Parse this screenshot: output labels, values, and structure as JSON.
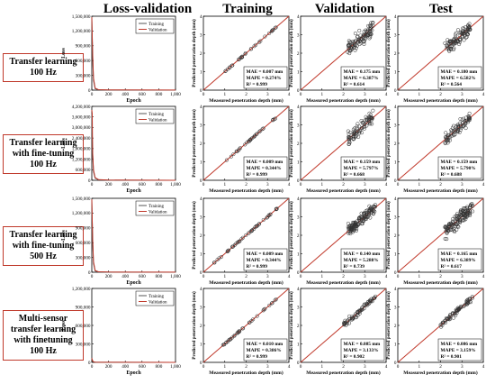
{
  "column_titles": [
    "Loss-validation",
    "Training",
    "Validation",
    "Test"
  ],
  "rows": [
    {
      "label_lines": [
        "Transfer learning",
        "100 Hz"
      ]
    },
    {
      "label_lines": [
        "Transfer learning",
        "with fine-tuning",
        "100 Hz"
      ]
    },
    {
      "label_lines": [
        "Transfer learning",
        "with fine-tuning",
        "500 Hz"
      ]
    },
    {
      "label_lines": [
        "Multi-sensor",
        "transfer learning",
        "with finetuning",
        "100 Hz"
      ]
    }
  ],
  "colors": {
    "label_border": "#c0392b",
    "validation_line": "#c0392b",
    "identity_line": "#c0392b",
    "training_line": "#555555",
    "scatter_marker": "#333333"
  },
  "chart_data": [
    {
      "type": "line",
      "panel": "loss-row1",
      "xlabel": "Epoch",
      "ylabel": "Loss",
      "xlim": [
        0,
        1000
      ],
      "ylim": [
        0,
        1500000
      ],
      "x_ticks": [
        "0",
        "200",
        "400",
        "600",
        "800",
        "1,000"
      ],
      "y_ticks": [
        "0",
        "300,000",
        "600,000",
        "900,000",
        "1,200,000",
        "1,500,000"
      ],
      "legend": "top-right",
      "series": [
        {
          "name": "Training",
          "x": [
            0,
            10,
            20,
            40,
            80,
            200,
            1000
          ],
          "values": [
            1450000,
            700000,
            200000,
            30000,
            8000,
            3000,
            1000
          ]
        },
        {
          "name": "Validation",
          "x": [
            0,
            10,
            20,
            40,
            80,
            200,
            1000
          ],
          "values": [
            1480000,
            750000,
            250000,
            40000,
            10000,
            4000,
            2000
          ]
        }
      ]
    },
    {
      "type": "line",
      "panel": "loss-row2",
      "xlabel": "Epoch",
      "ylabel": "Loss",
      "xlim": [
        0,
        1000
      ],
      "ylim": [
        0,
        4200000
      ],
      "x_ticks": [
        "0",
        "200",
        "400",
        "600",
        "800",
        "1,000"
      ],
      "y_ticks": [
        "0",
        "600,000",
        "1,200,000",
        "1,800,000",
        "2,400,000",
        "3,000,000",
        "3,600,000",
        "4,200,000"
      ],
      "legend": "top-right",
      "series": [
        {
          "name": "Training",
          "x": [
            0,
            10,
            20,
            40,
            80,
            200,
            1000
          ],
          "values": [
            3800000,
            1500000,
            500000,
            120000,
            30000,
            8000,
            2000
          ]
        },
        {
          "name": "Validation",
          "x": [
            0,
            5,
            10,
            20,
            40,
            80,
            200,
            1000
          ],
          "values": [
            4000000,
            3800000,
            1600000,
            600000,
            150000,
            40000,
            10000,
            3000
          ]
        }
      ]
    },
    {
      "type": "line",
      "panel": "loss-row3",
      "xlabel": "Epoch",
      "ylabel": "Loss",
      "xlim": [
        0,
        1000
      ],
      "ylim": [
        0,
        1500000
      ],
      "x_ticks": [
        "0",
        "200",
        "400",
        "600",
        "800",
        "1,000"
      ],
      "y_ticks": [
        "0",
        "300,000",
        "600,000",
        "900,000",
        "1,200,000",
        "1,500,000"
      ],
      "legend": "top-right",
      "series": [
        {
          "name": "Training",
          "x": [
            0,
            10,
            20,
            40,
            80,
            200,
            1000
          ],
          "values": [
            1450000,
            650000,
            180000,
            25000,
            6000,
            2500,
            1000
          ]
        },
        {
          "name": "Validation",
          "x": [
            0,
            10,
            20,
            40,
            80,
            200,
            1000
          ],
          "values": [
            1480000,
            700000,
            220000,
            35000,
            9000,
            3500,
            1500
          ]
        }
      ]
    },
    {
      "type": "line",
      "panel": "loss-row4",
      "xlabel": "Epoch",
      "ylabel": "Loss",
      "xlim": [
        0,
        1000
      ],
      "ylim": [
        0,
        1200000
      ],
      "x_ticks": [
        "0",
        "200",
        "400",
        "600",
        "800",
        "1,000"
      ],
      "y_ticks": [
        "0",
        "300,000",
        "600,000",
        "900,000",
        "1,200,000"
      ],
      "legend": "top-right",
      "series": [
        {
          "name": "Training",
          "x": [
            0,
            10,
            20,
            40,
            80,
            200,
            1000
          ],
          "values": [
            60000,
            20000,
            8000,
            3000,
            1500,
            1000,
            800
          ]
        },
        {
          "name": "Validation",
          "x": [
            0,
            10,
            20,
            40,
            80,
            200,
            1000
          ],
          "values": [
            70000,
            25000,
            10000,
            4000,
            2000,
            1200,
            900
          ]
        }
      ]
    },
    {
      "type": "scatter",
      "panel": "train-row1",
      "xlabel": "Measured penetration depth (mm)",
      "ylabel": "Predicted penetration depth (mm)",
      "xlim": [
        0,
        4
      ],
      "ylim": [
        0,
        4
      ],
      "x_ticks": [
        "0",
        "1",
        "2",
        "3",
        "4"
      ],
      "y_ticks": [
        "0",
        "1",
        "2",
        "3",
        "4"
      ],
      "metrics": [
        "MAE = 0.007 mm",
        "MAPE = 0.274%",
        "R² = 0.999"
      ],
      "point_range": [
        1,
        3.4
      ],
      "spread": 0.02,
      "n": 30
    },
    {
      "type": "scatter",
      "panel": "val-row1",
      "xlabel": "Measured penetration depth (mm)",
      "ylabel": "Predicted penetration depth (mm)",
      "xlim": [
        0,
        4
      ],
      "ylim": [
        0,
        4
      ],
      "x_ticks": [
        "0",
        "1",
        "2",
        "3",
        "4"
      ],
      "y_ticks": [
        "0",
        "1",
        "2",
        "3",
        "4"
      ],
      "metrics": [
        "MAE = 0.175 mm",
        "MAPE = 6.387%",
        "R² = 0.614"
      ],
      "point_range": [
        2.2,
        3.4
      ],
      "spread": 0.3,
      "n": 100
    },
    {
      "type": "scatter",
      "panel": "test-row1",
      "xlabel": "Measured penetration depth (mm)",
      "ylabel": "Predicted penetration depth (mm)",
      "xlim": [
        0,
        4
      ],
      "ylim": [
        0,
        4
      ],
      "x_ticks": [
        "0",
        "1",
        "2",
        "3",
        "4"
      ],
      "y_ticks": [
        "0",
        "1",
        "2",
        "3",
        "4"
      ],
      "metrics": [
        "MAE = 0.180 mm",
        "MAPE = 6.582%",
        "R² = 0.564"
      ],
      "point_range": [
        2.2,
        3.4
      ],
      "spread": 0.3,
      "n": 100
    },
    {
      "type": "scatter",
      "panel": "train-row2",
      "xlabel": "Measured penetration depth (mm)",
      "ylabel": "Predicted penetration depth (mm)",
      "xlim": [
        0,
        4
      ],
      "ylim": [
        0,
        4
      ],
      "x_ticks": [
        "0",
        "1",
        "2",
        "3",
        "4"
      ],
      "y_ticks": [
        "0",
        "1",
        "2",
        "3",
        "4"
      ],
      "metrics": [
        "MAE = 0.009 mm",
        "MAPE = 0.344%",
        "R² = 0.999"
      ],
      "point_range": [
        1,
        3.4
      ],
      "spread": 0.02,
      "n": 30
    },
    {
      "type": "scatter",
      "panel": "val-row2",
      "xlabel": "Measured penetration depth (mm)",
      "ylabel": "Predicted penetration depth (mm)",
      "xlim": [
        0,
        4
      ],
      "ylim": [
        0,
        4
      ],
      "x_ticks": [
        "0",
        "1",
        "2",
        "3",
        "4"
      ],
      "y_ticks": [
        "0",
        "1",
        "2",
        "3",
        "4"
      ],
      "metrics": [
        "MAE = 0.159 mm",
        "MAPE = 5.797%",
        "R² = 0.668"
      ],
      "point_range": [
        2.2,
        3.4
      ],
      "spread": 0.25,
      "n": 80
    },
    {
      "type": "scatter",
      "panel": "test-row2",
      "xlabel": "Measured penetration depth (mm)",
      "ylabel": "Predicted penetration depth (mm)",
      "xlim": [
        0,
        4
      ],
      "ylim": [
        0,
        4
      ],
      "x_ticks": [
        "0",
        "1",
        "2",
        "3",
        "4"
      ],
      "y_ticks": [
        "0",
        "1",
        "2",
        "3",
        "4"
      ],
      "metrics": [
        "MAE = 0.159 mm",
        "MAPE = 5.790%",
        "R² = 0.688"
      ],
      "point_range": [
        2.2,
        3.4
      ],
      "spread": 0.25,
      "n": 80
    },
    {
      "type": "scatter",
      "panel": "train-row3",
      "xlabel": "Measured penetration depth (mm)",
      "ylabel": "Predicted penetration depth (mm)",
      "xlim": [
        0,
        4
      ],
      "ylim": [
        0,
        4
      ],
      "x_ticks": [
        "0",
        "1",
        "2",
        "3",
        "4"
      ],
      "y_ticks": [
        "0",
        "1",
        "2",
        "3",
        "4"
      ],
      "metrics": [
        "MAE = 0.009 mm",
        "MAPE = 0.344%",
        "R² = 0.999"
      ],
      "point_range": [
        0.5,
        3.5
      ],
      "spread": 0.02,
      "n": 45
    },
    {
      "type": "scatter",
      "panel": "val-row3",
      "xlabel": "Measured penetration depth (mm)",
      "ylabel": "Predicted penetration depth (mm)",
      "xlim": [
        0,
        4
      ],
      "ylim": [
        0,
        4
      ],
      "x_ticks": [
        "0",
        "1",
        "2",
        "3",
        "4"
      ],
      "y_ticks": [
        "0",
        "1",
        "2",
        "3",
        "4"
      ],
      "metrics": [
        "MAE = 0.140 mm",
        "MAPE = 5.288%",
        "R² = 0.739"
      ],
      "point_range": [
        2.2,
        3.5
      ],
      "spread": 0.22,
      "n": 130
    },
    {
      "type": "scatter",
      "panel": "test-row3",
      "xlabel": "Measured penetration depth (mm)",
      "ylabel": "Predicted penetration depth (mm)",
      "xlim": [
        0,
        4
      ],
      "ylim": [
        0,
        4
      ],
      "x_ticks": [
        "0",
        "1",
        "2",
        "3",
        "4"
      ],
      "y_ticks": [
        "0",
        "1",
        "2",
        "3",
        "4"
      ],
      "metrics": [
        "MAE = 0.165 mm",
        "MAPE = 6.389%",
        "R² = 0.617"
      ],
      "point_range": [
        2.2,
        3.5
      ],
      "spread": 0.3,
      "n": 130
    },
    {
      "type": "scatter",
      "panel": "train-row4",
      "xlabel": "Measured penetration depth (mm)",
      "ylabel": "Predicted penetration depth (mm)",
      "xlim": [
        0,
        4
      ],
      "ylim": [
        0,
        4
      ],
      "x_ticks": [
        "0",
        "1",
        "2",
        "3",
        "4"
      ],
      "y_ticks": [
        "0",
        "1",
        "2",
        "3",
        "4"
      ],
      "metrics": [
        "MAE = 0.010 mm",
        "MAPE = 0.386%",
        "R² = 0.999"
      ],
      "point_range": [
        0.8,
        3.4
      ],
      "spread": 0.02,
      "n": 35
    },
    {
      "type": "scatter",
      "panel": "val-row4",
      "xlabel": "Measured penetration depth (mm)",
      "ylabel": "Predicted penetration depth (mm)",
      "xlim": [
        0,
        4
      ],
      "ylim": [
        0,
        4
      ],
      "x_ticks": [
        "0",
        "1",
        "2",
        "3",
        "4"
      ],
      "y_ticks": [
        "0",
        "1",
        "2",
        "3",
        "4"
      ],
      "metrics": [
        "MAE = 0.085 mm",
        "MAPE = 3.133%",
        "R² = 0.902"
      ],
      "point_range": [
        2.0,
        3.5
      ],
      "spread": 0.12,
      "n": 70
    },
    {
      "type": "scatter",
      "panel": "test-row4",
      "xlabel": "Measured penetration depth (mm)",
      "ylabel": "Predicted penetration depth (mm)",
      "xlim": [
        0,
        4
      ],
      "ylim": [
        0,
        4
      ],
      "x_ticks": [
        "0",
        "1",
        "2",
        "3",
        "4"
      ],
      "y_ticks": [
        "0",
        "1",
        "2",
        "3",
        "4"
      ],
      "metrics": [
        "MAE = 0.086 mm",
        "MAPE = 3.159%",
        "R² = 0.901"
      ],
      "point_range": [
        2.0,
        3.5
      ],
      "spread": 0.12,
      "n": 70
    }
  ]
}
